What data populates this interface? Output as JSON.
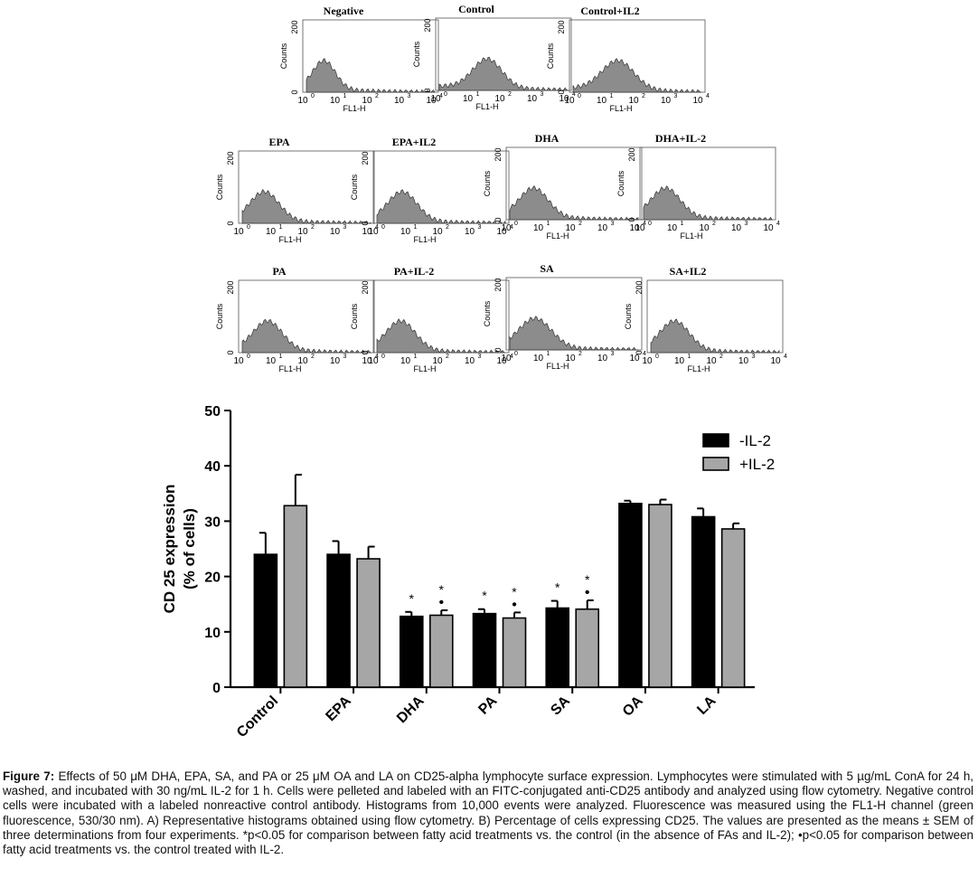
{
  "histograms": {
    "y_max_label": "200",
    "y_min_label": "0",
    "y_axis_label": "Counts",
    "x_axis_label": "FL1-H",
    "x_tick_labels": [
      "10",
      "10",
      "10",
      "10",
      "10"
    ],
    "x_tick_exponents": [
      "0",
      "1",
      "2",
      "3",
      "4"
    ],
    "fill_color": "#8c8c8c",
    "panels": [
      {
        "title": "Negative",
        "peak": 0.55,
        "spread": 0.35
      },
      {
        "title": "Control",
        "peak": 1.5,
        "spread": 0.45
      },
      {
        "title": "Control+IL2",
        "peak": 1.4,
        "spread": 0.5
      },
      {
        "title": "EPA",
        "peak": 0.7,
        "spread": 0.45
      },
      {
        "title": "EPA+IL2",
        "peak": 0.8,
        "spread": 0.45
      },
      {
        "title": "DHA",
        "peak": 0.75,
        "spread": 0.45
      },
      {
        "title": "DHA+IL-2",
        "peak": 0.7,
        "spread": 0.45
      },
      {
        "title": "PA",
        "peak": 0.8,
        "spread": 0.45
      },
      {
        "title": "PA+IL-2",
        "peak": 0.75,
        "spread": 0.45
      },
      {
        "title": "SA",
        "peak": 0.8,
        "spread": 0.5
      },
      {
        "title": "SA+IL2",
        "peak": 0.75,
        "spread": 0.45
      }
    ]
  },
  "chart_data": {
    "type": "bar",
    "ylabel_line1": "CD 25 expression",
    "ylabel_line2": "(% of cells)",
    "ylim": [
      0,
      50
    ],
    "yticks": [
      0,
      10,
      20,
      30,
      40,
      50
    ],
    "categories": [
      "Control",
      "EPA",
      "DHA",
      "PA",
      "SA",
      "OA",
      "LA"
    ],
    "series": [
      {
        "name": "-IL-2",
        "color": "#000000",
        "values": [
          24.0,
          24.0,
          12.8,
          13.3,
          14.3,
          33.2,
          30.8
        ],
        "errors": [
          3.9,
          2.4,
          0.8,
          0.8,
          1.3,
          0.5,
          1.5
        ]
      },
      {
        "name": "+IL-2",
        "color": "#a6a6a6",
        "values": [
          32.8,
          23.2,
          13.0,
          12.5,
          14.1,
          33.0,
          28.6
        ],
        "errors": [
          5.6,
          2.2,
          0.9,
          1.0,
          1.6,
          0.9,
          1.0
        ]
      }
    ],
    "star_marks": [
      {
        "category": "DHA",
        "series": 0
      },
      {
        "category": "DHA",
        "series": 1
      },
      {
        "category": "PA",
        "series": 0
      },
      {
        "category": "PA",
        "series": 1
      },
      {
        "category": "SA",
        "series": 0
      },
      {
        "category": "SA",
        "series": 1
      }
    ],
    "dot_marks": [
      {
        "category": "DHA",
        "series": 1
      },
      {
        "category": "PA",
        "series": 1
      },
      {
        "category": "SA",
        "series": 1
      }
    ],
    "star_symbol": "*",
    "dot_symbol": "•",
    "legend_position": "top-right"
  },
  "caption": {
    "label": "Figure 7:",
    "text": " Effects of 50 μM DHA, EPA, SA, and PA or 25 μM OA and LA on CD25-alpha lymphocyte surface expression. Lymphocytes were stimulated with 5 µg/mL ConA for 24 h, washed, and incubated with 30 ng/mL IL-2 for 1 h. Cells were pelleted and labeled with an FITC-conjugated anti-CD25 antibody and analyzed using flow cytometry. Negative control cells were incubated with a labeled nonreactive control antibody. Histograms from 10,000 events were analyzed. Fluorescence was measured using the FL1-H channel (green fluorescence, 530/30 nm). A) Representative histograms obtained using flow cytometry. B) Percentage of cells expressing CD25. The values are presented as the means ± SEM of three determinations from four experiments. *p<0.05 for comparison between fatty acid treatments vs. the control (in the absence of FAs and IL-2); •p<0.05 for comparison between fatty acid treatments vs. the control treated with IL-2."
  }
}
